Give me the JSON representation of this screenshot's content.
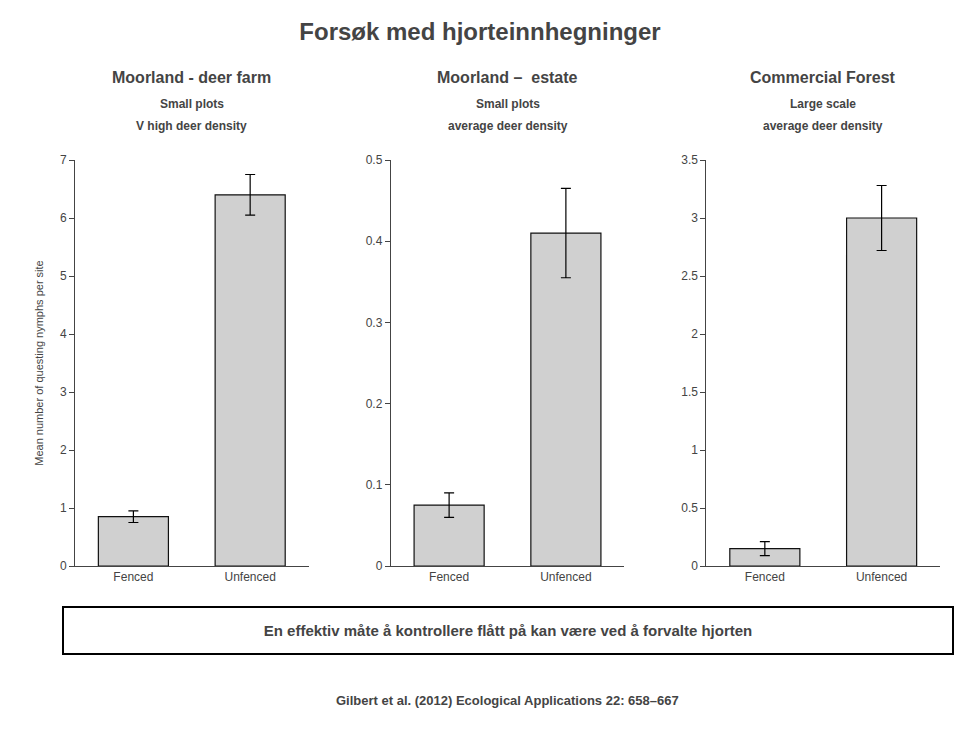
{
  "title": "Forsøk med hjorteinnhegninger",
  "annotations": [
    "En effektiv måte å kontrollere flått på kan være ved å forvalte hjorten",
    "Gilbert et al. (2012) Ecological Applications 22: 658–667"
  ],
  "chart_data": [
    {
      "type": "bar",
      "title": "Moorland - deer farm",
      "subtitle": [
        "Small plots",
        "V high deer density"
      ],
      "categories": [
        "Fenced",
        "Unfenced"
      ],
      "values": [
        0.85,
        6.4
      ],
      "errors": [
        0.1,
        0.35
      ],
      "ylim": [
        0,
        7
      ],
      "yticks": [
        0,
        1,
        2,
        3,
        4,
        5,
        6,
        7
      ],
      "ylabel": "Mean number of questing nymphs per site",
      "color": "#d0d0d0",
      "grid": false
    },
    {
      "type": "bar",
      "title": "Moorland –  estate",
      "subtitle": [
        "Small plots",
        "average deer density"
      ],
      "categories": [
        "Fenced",
        "Unfenced"
      ],
      "values": [
        0.075,
        0.41
      ],
      "errors": [
        0.015,
        0.055
      ],
      "ylim": [
        0,
        0.5
      ],
      "yticks": [
        0,
        0.1,
        0.2,
        0.3,
        0.4,
        0.5
      ],
      "color": "#d0d0d0",
      "grid": false
    },
    {
      "type": "bar",
      "title": "Commercial Forest",
      "subtitle": [
        "Large scale",
        "average deer density"
      ],
      "categories": [
        "Fenced",
        "Unfenced"
      ],
      "values": [
        0.15,
        3.0
      ],
      "errors": [
        0.06,
        0.28
      ],
      "ylim": [
        0,
        3.5
      ],
      "yticks": [
        0,
        0.5,
        1.0,
        1.5,
        2.0,
        2.5,
        3.0,
        3.5
      ],
      "color": "#d0d0d0",
      "grid": false
    }
  ]
}
